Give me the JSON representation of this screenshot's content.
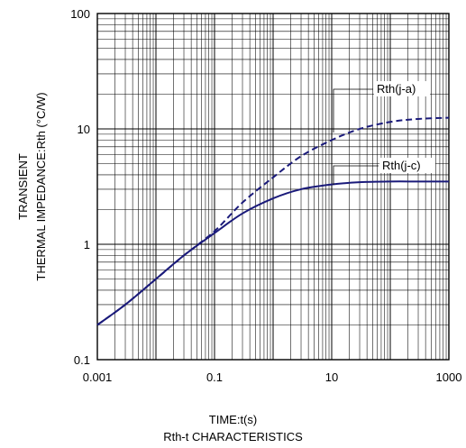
{
  "chart_data": {
    "type": "line",
    "title": "Rth-t CHARACTERISTICS",
    "xlabel": "TIME:t(s)",
    "ylabel_lines": [
      "TRANSIENT",
      "THERMAL IMPEDANCE:Rth (°C/W)"
    ],
    "x_scale": "log",
    "y_scale": "log",
    "xlim": [
      0.001,
      1000
    ],
    "ylim": [
      0.1,
      100
    ],
    "x_ticks": [
      "0.001",
      "0.1",
      "10",
      "1000"
    ],
    "x_tick_values": [
      0.001,
      0.1,
      10,
      1000
    ],
    "y_ticks": [
      "0.1",
      "1",
      "10",
      "100"
    ],
    "y_tick_values": [
      0.1,
      1,
      10,
      100
    ],
    "grid": true,
    "series": [
      {
        "name": "Rth(j-a)",
        "style": "dashed",
        "color": "#1a1a7a",
        "x": [
          0.001,
          0.003,
          0.01,
          0.03,
          0.1,
          0.3,
          1,
          3,
          10,
          30,
          100,
          300,
          1000
        ],
        "y": [
          0.2,
          0.3,
          0.5,
          0.8,
          1.3,
          2.3,
          3.8,
          5.8,
          8.0,
          10.0,
          11.5,
          12.2,
          12.5
        ]
      },
      {
        "name": "Rth(j-c)",
        "style": "solid",
        "color": "#1a1a7a",
        "x": [
          0.001,
          0.003,
          0.01,
          0.03,
          0.1,
          0.3,
          1,
          3,
          10,
          30,
          100,
          300,
          1000
        ],
        "y": [
          0.2,
          0.3,
          0.5,
          0.8,
          1.25,
          1.85,
          2.5,
          3.0,
          3.3,
          3.45,
          3.5,
          3.5,
          3.5
        ]
      }
    ]
  }
}
